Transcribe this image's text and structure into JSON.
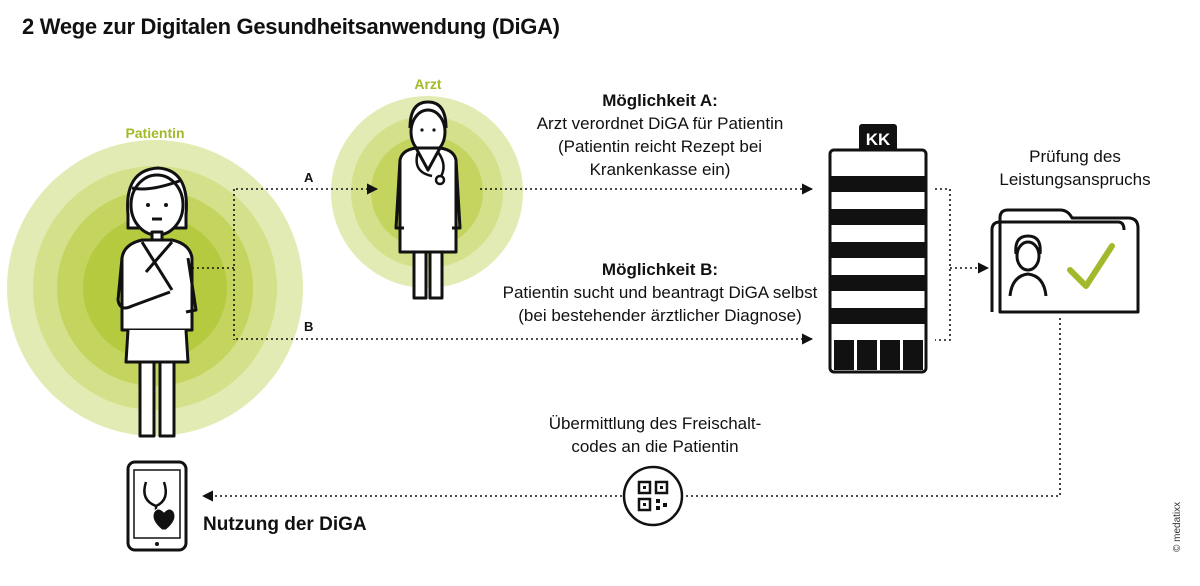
{
  "title": "2 Wege zur Digitalen Gesundheitsanwendung (DiGA)",
  "roles": {
    "patient": "Patientin",
    "doctor": "Arzt"
  },
  "path_labels": {
    "a": "A",
    "b": "B"
  },
  "option_a": {
    "heading": "Möglichkeit A:",
    "line1": "Arzt verordnet DiGA für Patientin",
    "line2": "(Patientin reicht Rezept bei",
    "line3": "Krankenkasse ein)"
  },
  "option_b": {
    "heading": "Möglichkeit B:",
    "line1": "Patientin sucht und beantragt DiGA selbst",
    "line2": "(bei bestehender ärztlicher Diagnose)"
  },
  "insurer": {
    "badge": "KK"
  },
  "check": {
    "line1": "Prüfung des",
    "line2": "Leistungsanspruchs"
  },
  "transfer": {
    "line1": "Übermittlung des Freischalt-",
    "line2": "codes an die Patientin"
  },
  "usage": "Nutzung der DiGA",
  "credit": "© medatixx",
  "colors": {
    "accent": "#a3b82a",
    "ring_outer": "#e3ebb4",
    "ring_mid": "#d4e08a",
    "ring_inner": "#c4d45e",
    "line": "#111111"
  },
  "icons": [
    "patient-figure-icon",
    "doctor-figure-icon",
    "stethoscope-icon",
    "insurance-building-icon",
    "patient-file-folder-icon",
    "checkmark-icon",
    "qr-code-icon",
    "tablet-icon",
    "heart-icon"
  ]
}
